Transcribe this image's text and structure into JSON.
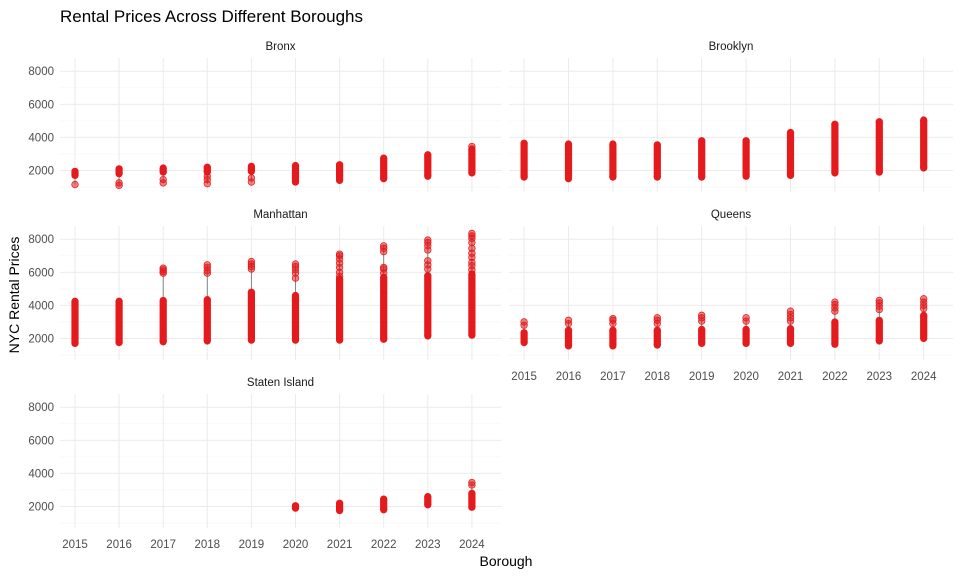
{
  "chart_data": {
    "type": "scatter",
    "title": "Rental Prices Across Different Boroughs",
    "xlabel": "Borough",
    "ylabel": "NYC Rental Prices",
    "x_ticks": [
      "2015",
      "2016",
      "2017",
      "2018",
      "2019",
      "2020",
      "2021",
      "2022",
      "2023",
      "2024"
    ],
    "y_ticks": [
      "2000",
      "4000",
      "6000",
      "8000"
    ],
    "ylim": [
      700,
      8800
    ],
    "grid": true,
    "point_color": "#e41a1c",
    "panels": [
      {
        "name": "Bronx",
        "ranges": [
          {
            "year": 2015,
            "min": 1700,
            "max": 1950,
            "outliers": [
              1150
            ]
          },
          {
            "year": 2016,
            "min": 1800,
            "max": 2100,
            "outliers": [
              1100,
              1250
            ]
          },
          {
            "year": 2017,
            "min": 1900,
            "max": 2150,
            "outliers": [
              1250,
              1450
            ]
          },
          {
            "year": 2018,
            "min": 1900,
            "max": 2200,
            "outliers": [
              1200,
              1450,
              1650
            ]
          },
          {
            "year": 2019,
            "min": 1950,
            "max": 2250,
            "outliers": [
              1300,
              1550
            ]
          },
          {
            "year": 2020,
            "min": 1300,
            "max": 2300,
            "outliers": []
          },
          {
            "year": 2021,
            "min": 1400,
            "max": 2350,
            "outliers": []
          },
          {
            "year": 2022,
            "min": 1500,
            "max": 2750,
            "outliers": []
          },
          {
            "year": 2023,
            "min": 1650,
            "max": 2950,
            "outliers": []
          },
          {
            "year": 2024,
            "min": 1850,
            "max": 3300,
            "outliers": [
              3450
            ]
          }
        ]
      },
      {
        "name": "Brooklyn",
        "ranges": [
          {
            "year": 2015,
            "min": 1600,
            "max": 3650,
            "outliers": []
          },
          {
            "year": 2016,
            "min": 1500,
            "max": 3600,
            "outliers": []
          },
          {
            "year": 2017,
            "min": 1600,
            "max": 3600,
            "outliers": []
          },
          {
            "year": 2018,
            "min": 1600,
            "max": 3550,
            "outliers": []
          },
          {
            "year": 2019,
            "min": 1600,
            "max": 3800,
            "outliers": []
          },
          {
            "year": 2020,
            "min": 1650,
            "max": 3800,
            "outliers": []
          },
          {
            "year": 2021,
            "min": 1700,
            "max": 4300,
            "outliers": []
          },
          {
            "year": 2022,
            "min": 1850,
            "max": 4800,
            "outliers": []
          },
          {
            "year": 2023,
            "min": 1900,
            "max": 4950,
            "outliers": []
          },
          {
            "year": 2024,
            "min": 2150,
            "max": 5050,
            "outliers": []
          }
        ]
      },
      {
        "name": "Manhattan",
        "ranges": [
          {
            "year": 2015,
            "min": 1700,
            "max": 4250,
            "outliers": []
          },
          {
            "year": 2016,
            "min": 1750,
            "max": 4250,
            "outliers": []
          },
          {
            "year": 2017,
            "min": 1800,
            "max": 4300,
            "outliers": [
              5950,
              6050,
              6150,
              6250
            ]
          },
          {
            "year": 2018,
            "min": 1850,
            "max": 4350,
            "outliers": [
              5950,
              6100,
              6300,
              6450
            ]
          },
          {
            "year": 2019,
            "min": 1900,
            "max": 4800,
            "outliers": [
              6200,
              6350,
              6500,
              6650
            ]
          },
          {
            "year": 2020,
            "min": 1900,
            "max": 4600,
            "outliers": [
              5650,
              5950,
              6150,
              6350,
              6500
            ]
          },
          {
            "year": 2021,
            "min": 1900,
            "max": 5600,
            "outliers": [
              5750,
              6000,
              6300,
              6550,
              6800,
              7000,
              7100
            ]
          },
          {
            "year": 2022,
            "min": 1950,
            "max": 5700,
            "outliers": [
              5950,
              6200,
              6300,
              7250,
              7450,
              7600
            ]
          },
          {
            "year": 2023,
            "min": 2150,
            "max": 5800,
            "outliers": [
              6200,
              6450,
              6700,
              7350,
              7600,
              7800,
              7950
            ]
          },
          {
            "year": 2024,
            "min": 2200,
            "max": 5900,
            "outliers": [
              6150,
              6400,
              6600,
              6900,
              7150,
              7450,
              7800,
              8050,
              8200,
              8350
            ]
          }
        ]
      },
      {
        "name": "Queens",
        "ranges": [
          {
            "year": 2015,
            "min": 1750,
            "max": 2350,
            "outliers": [
              2800,
              3000
            ]
          },
          {
            "year": 2016,
            "min": 1550,
            "max": 2500,
            "outliers": [
              2900,
              3100
            ]
          },
          {
            "year": 2017,
            "min": 1550,
            "max": 2500,
            "outliers": [
              2900,
              3100,
              3200
            ]
          },
          {
            "year": 2018,
            "min": 1600,
            "max": 2500,
            "outliers": [
              2900,
              3100,
              3250
            ]
          },
          {
            "year": 2019,
            "min": 1700,
            "max": 2550,
            "outliers": [
              3050,
              3250,
              3400
            ]
          },
          {
            "year": 2020,
            "min": 1700,
            "max": 2550,
            "outliers": [
              3050,
              3250
            ]
          },
          {
            "year": 2021,
            "min": 1700,
            "max": 2600,
            "outliers": [
              3050,
              3250,
              3450,
              3650
            ]
          },
          {
            "year": 2022,
            "min": 1650,
            "max": 3000,
            "outliers": [
              3650,
              3850,
              4050,
              4200
            ]
          },
          {
            "year": 2023,
            "min": 1850,
            "max": 3100,
            "outliers": [
              3750,
              3950,
              4150,
              4300
            ]
          },
          {
            "year": 2024,
            "min": 2000,
            "max": 3400,
            "outliers": [
              3800,
              4000,
              4200,
              4400
            ]
          }
        ]
      },
      {
        "name": "Staten Island",
        "ranges": [
          {
            "year": 2020,
            "min": 1900,
            "max": 2050,
            "outliers": []
          },
          {
            "year": 2021,
            "min": 1750,
            "max": 2200,
            "outliers": []
          },
          {
            "year": 2022,
            "min": 1800,
            "max": 2450,
            "outliers": []
          },
          {
            "year": 2023,
            "min": 2100,
            "max": 2600,
            "outliers": []
          },
          {
            "year": 2024,
            "min": 1950,
            "max": 2800,
            "outliers": [
              3300,
              3450
            ]
          }
        ]
      }
    ]
  }
}
